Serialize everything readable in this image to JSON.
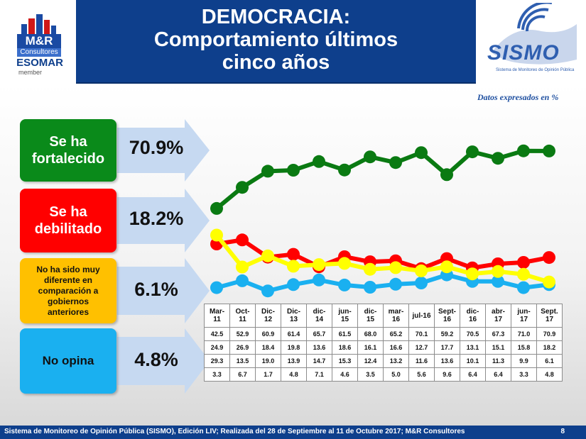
{
  "title_lines": [
    "DEMOCRACIA:",
    "Comportamiento últimos",
    "cinco años"
  ],
  "logo_left": {
    "mr": "M&R",
    "consultores": "Consultores",
    "esomar": "ESOMAR",
    "member": "member"
  },
  "logo_right": {
    "name": "SISMO",
    "subtitle": "Sistema de Monitoreo de Opinión Pública"
  },
  "note": "Datos expresados en  %",
  "categories": [
    {
      "label_lines": [
        "Se ha",
        "fortalecido"
      ],
      "value": "70.9%",
      "color": "#0a8a1a",
      "text_color": "#ffffff"
    },
    {
      "label_lines": [
        "Se ha",
        "debilitado"
      ],
      "value": "18.2%",
      "color": "#ff0000",
      "text_color": "#ffffff"
    },
    {
      "label_lines": [
        "No ha sido muy",
        "diferente en",
        "comparación a",
        "gobiernos",
        "anteriores"
      ],
      "value": "6.1%",
      "color": "#ffc000",
      "text_color": "#111111"
    },
    {
      "label_lines": [
        "No opina"
      ],
      "value": "4.8%",
      "color": "#1ab0f0",
      "text_color": "#111111"
    }
  ],
  "chart_data": {
    "type": "line",
    "x": [
      "Mar-11",
      "Oct-11",
      "Dic-12",
      "Dic-13",
      "dic-14",
      "jun-15",
      "dic-15",
      "mar-16",
      "jul-16",
      "Sept-16",
      "dic-16",
      "abr-17",
      "jun-17",
      "Sept. 17"
    ],
    "series": [
      {
        "name": "Se ha fortalecido",
        "color": "#0a7a12",
        "values": [
          42.5,
          52.9,
          60.9,
          61.4,
          65.7,
          61.5,
          68.0,
          65.2,
          70.1,
          59.2,
          70.5,
          67.3,
          71.0,
          70.9
        ]
      },
      {
        "name": "Se ha debilitado",
        "color": "#ff0000",
        "values": [
          24.9,
          26.9,
          18.4,
          19.8,
          13.6,
          18.6,
          16.1,
          16.6,
          12.7,
          17.7,
          13.1,
          15.1,
          15.8,
          18.2
        ]
      },
      {
        "name": "No ha sido muy diferente en comparación a gobiernos anteriores",
        "color": "#ffff00",
        "values": [
          29.3,
          13.5,
          19.0,
          13.9,
          14.7,
          15.3,
          12.4,
          13.2,
          11.6,
          13.6,
          10.1,
          11.3,
          9.9,
          6.1
        ]
      },
      {
        "name": "No opina",
        "color": "#1ab0f0",
        "values": [
          3.3,
          6.7,
          1.7,
          4.8,
          7.1,
          4.6,
          3.5,
          5.0,
          5.6,
          9.6,
          6.4,
          6.4,
          3.3,
          4.8
        ]
      }
    ]
  },
  "table": {
    "headers": [
      [
        "Mar-",
        "11"
      ],
      [
        "Oct-",
        "11"
      ],
      [
        "Dic-",
        "12"
      ],
      [
        "Dic-",
        "13"
      ],
      [
        "dic-",
        "14"
      ],
      [
        "jun-",
        "15"
      ],
      [
        "dic-",
        "15"
      ],
      [
        "mar-",
        "16"
      ],
      [
        "jul-16"
      ],
      [
        "Sept-",
        "16"
      ],
      [
        "dic-",
        "16"
      ],
      [
        "abr-",
        "17"
      ],
      [
        "jun-",
        "17"
      ],
      [
        "Sept.",
        "17"
      ]
    ],
    "rows": [
      [
        "42.5",
        "52.9",
        "60.9",
        "61.4",
        "65.7",
        "61.5",
        "68.0",
        "65.2",
        "70.1",
        "59.2",
        "70.5",
        "67.3",
        "71.0",
        "70.9"
      ],
      [
        "24.9",
        "26.9",
        "18.4",
        "19.8",
        "13.6",
        "18.6",
        "16.1",
        "16.6",
        "12.7",
        "17.7",
        "13.1",
        "15.1",
        "15.8",
        "18.2"
      ],
      [
        "29.3",
        "13.5",
        "19.0",
        "13.9",
        "14.7",
        "15.3",
        "12.4",
        "13.2",
        "11.6",
        "13.6",
        "10.1",
        "11.3",
        "9.9",
        "6.1"
      ],
      [
        "3.3",
        "6.7",
        "1.7",
        "4.8",
        "7.1",
        "4.6",
        "3.5",
        "5.0",
        "5.6",
        "9.6",
        "6.4",
        "6.4",
        "3.3",
        "4.8"
      ]
    ]
  },
  "footer": {
    "text": "Sistema de Monitoreo de Opinión Pública (SISMO), Edición LIV; Realizada del 28 de Septiembre al 11 de Octubre 2017; M&R Consultores",
    "page": "8"
  }
}
